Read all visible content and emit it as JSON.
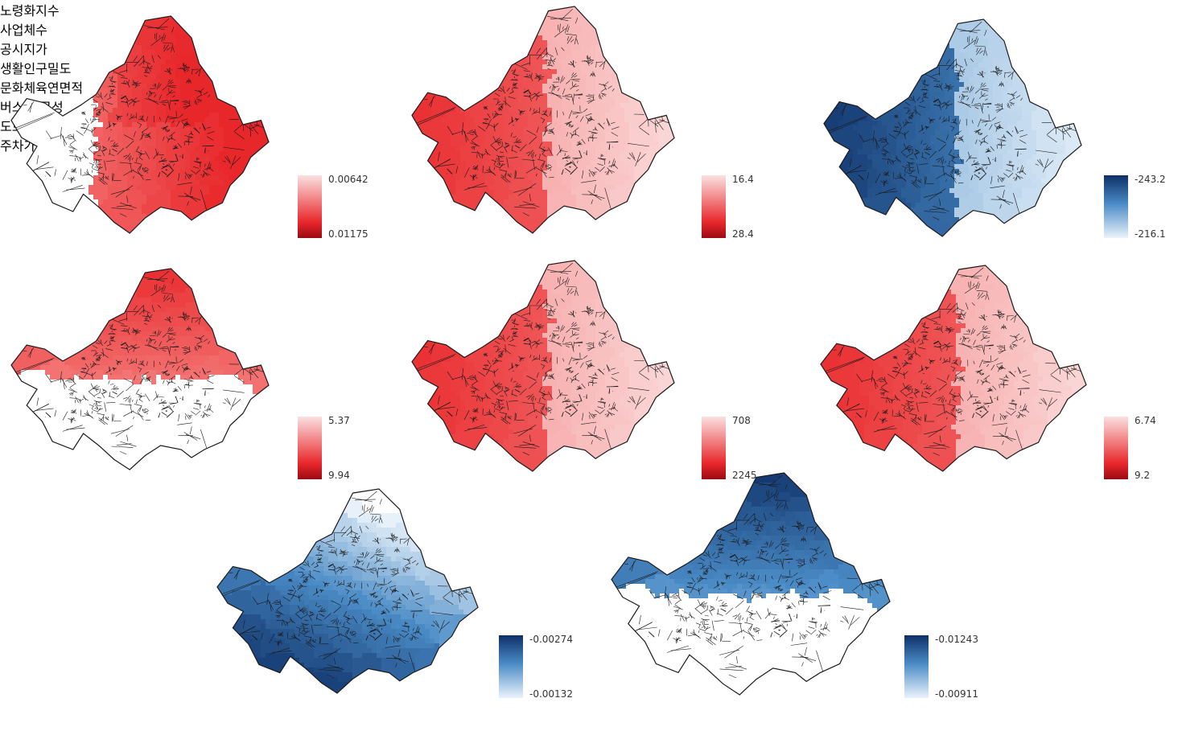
{
  "colors": {
    "red_light": "#fbe0e0",
    "red_mid": "#f26a6a",
    "red_dark": "#e8272b",
    "red_legend_bottom": "#9b0b12",
    "blue_light": "#eaf3fb",
    "blue_mid": "#4a8bc6",
    "blue_dark": "#0e2f66",
    "boundary": "#1a1a1a"
  },
  "maps": [
    {
      "title": "노령화지수",
      "palette": "red",
      "pattern": "east_high",
      "legend": {
        "top": "0.00642",
        "bottom": "0.01175"
      }
    },
    {
      "title": "사업체수",
      "palette": "red",
      "pattern": "west_high",
      "legend": {
        "top": "16.4",
        "bottom": "28.4"
      }
    },
    {
      "title": "공시지가",
      "palette": "blue",
      "pattern": "west_high",
      "legend": {
        "top": "-243.2",
        "bottom": "-216.1"
      }
    },
    {
      "title": "생활인구밀도",
      "palette": "red",
      "pattern": "north_high",
      "legend": {
        "top": "5.37",
        "bottom": "9.94"
      }
    },
    {
      "title": "문화체육연면적",
      "palette": "red",
      "pattern": "west_high",
      "legend": {
        "top": "708",
        "bottom": "2245"
      }
    },
    {
      "title": "버스 접근성",
      "palette": "red",
      "pattern": "west_high",
      "legend": {
        "top": "6.74",
        "bottom": "9.2"
      }
    },
    {
      "title": "도로율",
      "palette": "blue",
      "pattern": "south_west_high",
      "legend": {
        "top": "-0.00274",
        "bottom": "-0.00132"
      }
    },
    {
      "title": "주차가능대수",
      "palette": "blue",
      "pattern": "north_high",
      "legend": {
        "top": "-0.01243",
        "bottom": "-0.00911"
      }
    }
  ]
}
